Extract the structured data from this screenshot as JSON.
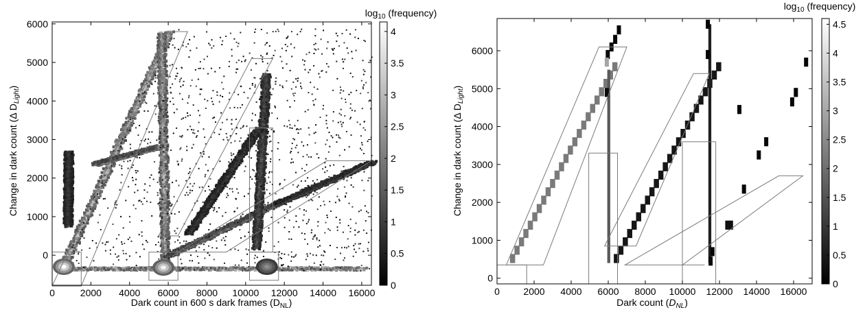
{
  "chart_data": [
    {
      "type": "heatmap",
      "xlabel": "Dark count in 600 s dark frames (D",
      "xlabel_sub": "NL",
      "xlabel_tail": ")",
      "ylabel": "Change in dark count (Δ D",
      "ylabel_sub": "Light",
      "ylabel_tail": ")",
      "xlim": [
        0,
        16500
      ],
      "ylim": [
        -780,
        6050
      ],
      "xticks": [
        0,
        2000,
        4000,
        6000,
        8000,
        10000,
        12000,
        14000,
        16000
      ],
      "yticks": [
        0,
        1000,
        2000,
        3000,
        4000,
        5000,
        6000
      ],
      "colorbar": {
        "label_prefix": "log",
        "label_sub": "10",
        "label_suffix": " (frequency)",
        "min": 0,
        "max": 4.15,
        "ticks": [
          "0",
          "0.5",
          "1",
          "1.5",
          "2",
          "2.5",
          "3",
          "3.5",
          "4"
        ]
      },
      "density_bands": [
        {
          "x": [
            500,
            6000
          ],
          "y": [
            -300,
            5800
          ],
          "value": 3.0
        },
        {
          "x": [
            5600,
            5800
          ],
          "y": [
            5800,
            -300
          ],
          "value": 2.7
        },
        {
          "x": [
            500,
            16000
          ],
          "y": [
            -320,
            -320
          ],
          "value": 3.2
        },
        {
          "x": [
            2200,
            5500
          ],
          "y": [
            2400,
            2850
          ],
          "value": 2.2
        },
        {
          "x": [
            5900,
            11500
          ],
          "y": [
            0,
            1350
          ],
          "value": 2.0
        },
        {
          "x": [
            11500,
            16500
          ],
          "y": [
            1350,
            2450
          ],
          "value": 1.2
        },
        {
          "x": [
            10500,
            11000
          ],
          "y": [
            200,
            4700
          ],
          "value": 1.3
        },
        {
          "x": [
            7000,
            10600
          ],
          "y": [
            600,
            3300
          ],
          "value": 1.0
        },
        {
          "x": [
            750,
            800
          ],
          "y": [
            800,
            2700
          ],
          "value": 1.0
        }
      ],
      "hotspots": [
        {
          "x": 600,
          "y": -300,
          "value": 4.1
        },
        {
          "x": 5750,
          "y": -320,
          "value": 3.9
        },
        {
          "x": 11100,
          "y": -300,
          "value": 2.3
        }
      ],
      "boxes": [
        {
          "points": [
            [
              0,
              80
            ],
            [
              1500,
              80
            ],
            [
              1500,
              -800
            ],
            [
              0,
              -800
            ]
          ]
        },
        {
          "points": [
            [
              5000,
              80
            ],
            [
              6500,
              80
            ],
            [
              6500,
              -650
            ],
            [
              5000,
              -650
            ]
          ]
        },
        {
          "points": [
            [
              10200,
              80
            ],
            [
              11700,
              80
            ],
            [
              11700,
              -650
            ],
            [
              10200,
              -650
            ]
          ]
        },
        {
          "points": [
            [
              0,
              -800
            ],
            [
              6100,
              5800
            ],
            [
              7000,
              5800
            ],
            [
              1500,
              -800
            ]
          ]
        },
        {
          "points": [
            [
              5500,
              500
            ],
            [
              10300,
              5100
            ],
            [
              11400,
              5100
            ],
            [
              6500,
              500
            ]
          ]
        },
        {
          "points": [
            [
              6500,
              80
            ],
            [
              14200,
              2450
            ],
            [
              16500,
              2450
            ],
            [
              9000,
              80
            ]
          ]
        },
        {
          "points": [
            [
              10200,
              3300
            ],
            [
              11400,
              3300
            ],
            [
              11400,
              80
            ],
            [
              10200,
              80
            ]
          ]
        }
      ]
    },
    {
      "type": "heatmap",
      "xlabel": "Dark count (",
      "xlabel_italic": "D",
      "xlabel_sub": "NL",
      "xlabel_tail": ")",
      "ylabel": "Change in dark count (Δ D",
      "ylabel_sub": "Light",
      "ylabel_tail": ")",
      "xlim": [
        0,
        17000
      ],
      "ylim": [
        -150,
        6850
      ],
      "xticks": [
        0,
        2000,
        4000,
        6000,
        8000,
        10000,
        12000,
        14000,
        16000
      ],
      "yticks": [
        0,
        1000,
        2000,
        3000,
        4000,
        5000,
        6000
      ],
      "colorbar": {
        "label_prefix": "log",
        "label_sub": "10",
        "label_suffix": " (frequency)",
        "min": 0,
        "max": 4.6,
        "ticks": [
          "0",
          "0.5",
          "1",
          "1.5",
          "2",
          "2.5",
          "3",
          "3.5",
          "4",
          "4.5"
        ]
      },
      "diag1": {
        "x0": 700,
        "dx": 240,
        "y0": 400,
        "dy": 220,
        "n": 24,
        "value": 2.2
      },
      "col1": {
        "x": 5950,
        "y0": 400,
        "y1": 5500,
        "value": 1.6
      },
      "diag2": {
        "x0": 6300,
        "dx": 240,
        "y0": 400,
        "dy": 220,
        "n": 24,
        "value": 0.4
      },
      "col2": {
        "x": 11400,
        "y0": 400,
        "y1": 6700,
        "value": 0.6
      },
      "cells": [
        {
          "x": 6000,
          "y": 5900,
          "value": 0.2
        },
        {
          "x": 6200,
          "y": 6100,
          "value": 0.2
        },
        {
          "x": 6400,
          "y": 6300,
          "value": 0.1
        },
        {
          "x": 6600,
          "y": 6550,
          "value": 0.1
        },
        {
          "x": 5950,
          "y": 5700,
          "value": 3.0
        },
        {
          "x": 5950,
          "y": 4900,
          "value": 0.2
        },
        {
          "x": 11400,
          "y": 6700,
          "value": 0.1
        },
        {
          "x": 11400,
          "y": 5900,
          "value": 0.1
        },
        {
          "x": 11650,
          "y": 700,
          "value": 0.1
        },
        {
          "x": 11550,
          "y": 450,
          "value": 0.2
        },
        {
          "x": 12450,
          "y": 1400,
          "value": 0.3
        },
        {
          "x": 12650,
          "y": 1400,
          "value": 0.3
        },
        {
          "x": 13350,
          "y": 2350,
          "value": 0.1
        },
        {
          "x": 14150,
          "y": 3250,
          "value": 0.1
        },
        {
          "x": 14550,
          "y": 3600,
          "value": 0.1
        },
        {
          "x": 13100,
          "y": 4450,
          "value": 0.1
        },
        {
          "x": 15950,
          "y": 4650,
          "value": 0.1
        },
        {
          "x": 16150,
          "y": 4900,
          "value": 0.1
        },
        {
          "x": 16700,
          "y": 5700,
          "value": 0.1
        }
      ],
      "boxes": [
        {
          "points": [
            [
              0,
              350
            ],
            [
              1600,
              350
            ],
            [
              1600,
              -150
            ],
            [
              0,
              -150
            ]
          ]
        },
        {
          "points": [
            [
              4950,
              3300
            ],
            [
              6500,
              3300
            ],
            [
              6500,
              -150
            ],
            [
              4950,
              -150
            ]
          ]
        },
        {
          "points": [
            [
              10000,
              3600
            ],
            [
              11800,
              3600
            ],
            [
              11800,
              -150
            ],
            [
              10000,
              -150
            ]
          ]
        },
        {
          "points": [
            [
              500,
              350
            ],
            [
              5500,
              6100
            ],
            [
              7000,
              6100
            ],
            [
              2500,
              350
            ]
          ]
        },
        {
          "points": [
            [
              5800,
              850
            ],
            [
              10600,
              5400
            ],
            [
              11450,
              5400
            ],
            [
              7500,
              850
            ]
          ]
        },
        {
          "points": [
            [
              6900,
              350
            ],
            [
              15200,
              2700
            ],
            [
              16500,
              2700
            ],
            [
              10000,
              350
            ]
          ]
        },
        {
          "points": [
            [
              10000,
              350
            ],
            [
              11200,
              350
            ]
          ]
        }
      ]
    }
  ]
}
